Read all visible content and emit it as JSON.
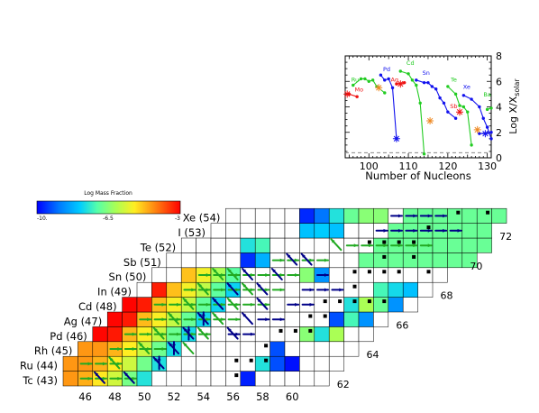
{
  "chart_data": [
    {
      "type": "scatter",
      "xlabel": "Number of Nucleons",
      "ylabel": "Log X/X",
      "ylabel_sub": "solar",
      "xlim": [
        94,
        131
      ],
      "ylim": [
        0,
        8
      ],
      "xticks": [
        "100",
        "110",
        "120",
        "130"
      ],
      "yticks": [
        "0",
        "2",
        "4",
        "6",
        "8"
      ],
      "annotations": [
        {
          "text": "Ru",
          "color": "#22cc22",
          "x": 96.5,
          "y": 6.0
        },
        {
          "text": "Mo",
          "color": "#ee1111",
          "x": 97.5,
          "y": 5.2
        },
        {
          "text": "Pd",
          "color": "#1111ee",
          "x": 104.5,
          "y": 6.8
        },
        {
          "text": "Cd",
          "color": "#22cc22",
          "x": 110.5,
          "y": 7.3
        },
        {
          "text": "Ag",
          "color": "#ee1111",
          "x": 106.5,
          "y": 6.0
        },
        {
          "text": "Sn",
          "color": "#1111ee",
          "x": 114.5,
          "y": 6.5
        },
        {
          "text": "Te",
          "color": "#22cc22",
          "x": 121.5,
          "y": 6.0
        },
        {
          "text": "Sb",
          "color": "#ee1111",
          "x": 121.5,
          "y": 3.9
        },
        {
          "text": "Xe",
          "color": "#1111ee",
          "x": 124.8,
          "y": 5.4
        },
        {
          "text": "Ba",
          "color": "#22cc22",
          "x": 130.0,
          "y": 4.8
        }
      ],
      "series": [
        {
          "color": "#22cc22",
          "points": [
            [
              96,
              5.7
            ],
            [
              98,
              6.2
            ],
            [
              99,
              6.2
            ],
            [
              100,
              6.0
            ],
            [
              101,
              6.1
            ],
            [
              102,
              5.6
            ],
            [
              104,
              5.1
            ]
          ]
        },
        {
          "color": "#ee1111",
          "points": [
            [
              95,
              5.0
            ],
            [
              97,
              4.8
            ]
          ]
        },
        {
          "color": "#1111ee",
          "points": [
            [
              103,
              6.5
            ],
            [
              104,
              6.1
            ],
            [
              105,
              6.2
            ],
            [
              106,
              5.5
            ],
            [
              107,
              1.5
            ]
          ]
        },
        {
          "color": "#ee1111",
          "points": [
            [
              107,
              5.8
            ],
            [
              109,
              5.9
            ]
          ]
        },
        {
          "color": "#22cc22",
          "points": [
            [
              108,
              6.8
            ],
            [
              110,
              6.6
            ],
            [
              111,
              6.1
            ],
            [
              112,
              5.7
            ],
            [
              113,
              4.3
            ],
            [
              114,
              0.3
            ]
          ]
        },
        {
          "color": "#1111ee",
          "points": [
            [
              112,
              6.1
            ],
            [
              114,
              5.9
            ],
            [
              115,
              5.9
            ],
            [
              116,
              5.6
            ],
            [
              117,
              5.4
            ],
            [
              118,
              4.7
            ],
            [
              119,
              4.3
            ],
            [
              120,
              3.6
            ],
            [
              122,
              3.1
            ]
          ]
        },
        {
          "color": "#22cc22",
          "points": [
            [
              120,
              5.6
            ],
            [
              122,
              5.0
            ],
            [
              123,
              4.1
            ],
            [
              124,
              4.0
            ],
            [
              125,
              3.6
            ],
            [
              126,
              1.0
            ]
          ]
        },
        {
          "color": "#1111ee",
          "points": [
            [
              124,
              4.9
            ],
            [
              126,
              4.6
            ],
            [
              128,
              4.0
            ],
            [
              129,
              3.1
            ],
            [
              130,
              2.4
            ],
            [
              131,
              1.5
            ]
          ]
        },
        {
          "color": "#22cc22",
          "points": [
            [
              130,
              3.8
            ],
            [
              131,
              3.9
            ]
          ]
        },
        {
          "color": "#1111ee",
          "points": [
            [
              128,
              1.9
            ],
            [
              131,
              2.0
            ]
          ]
        }
      ],
      "stars": [
        {
          "x": 94.5,
          "y": 5.0,
          "color": "#ee1111"
        },
        {
          "x": 102.5,
          "y": 5.5,
          "color": "#ee8822"
        },
        {
          "x": 107,
          "y": 1.5,
          "color": "#1111ee"
        },
        {
          "x": 108,
          "y": 5.8,
          "color": "#ee1111"
        },
        {
          "x": 115.5,
          "y": 2.9,
          "color": "#ee8822"
        },
        {
          "x": 123,
          "y": 3.6,
          "color": "#ee1111"
        },
        {
          "x": 127.5,
          "y": 2.2,
          "color": "#ee8822"
        },
        {
          "x": 129.5,
          "y": 1.9,
          "color": "#1111ee"
        }
      ],
      "solar_line": 0.4
    },
    {
      "type": "heatmap",
      "title": "Log Mass Fraction",
      "colorbar_ticks": [
        "-10.",
        "-6.5",
        "-3"
      ],
      "colorbar_range": [
        -10,
        -3
      ],
      "xticks": [
        "46",
        "48",
        "50",
        "52",
        "54",
        "56",
        "58",
        "60"
      ],
      "element_labels": [
        "Xe (54)",
        "I (53)",
        "Te (52)",
        "Sb (51)",
        "Sn (50)",
        "In (49)",
        "Cd (48)",
        "Ag (47)",
        "Pd (46)",
        "Rh (45)",
        "Ru (44)",
        "Tc (43)"
      ],
      "diagonal_labels": [
        "72",
        "70",
        "68",
        "66",
        "64",
        "62"
      ],
      "stable_marker_count": 30,
      "flow_arrow_count": 100
    }
  ]
}
